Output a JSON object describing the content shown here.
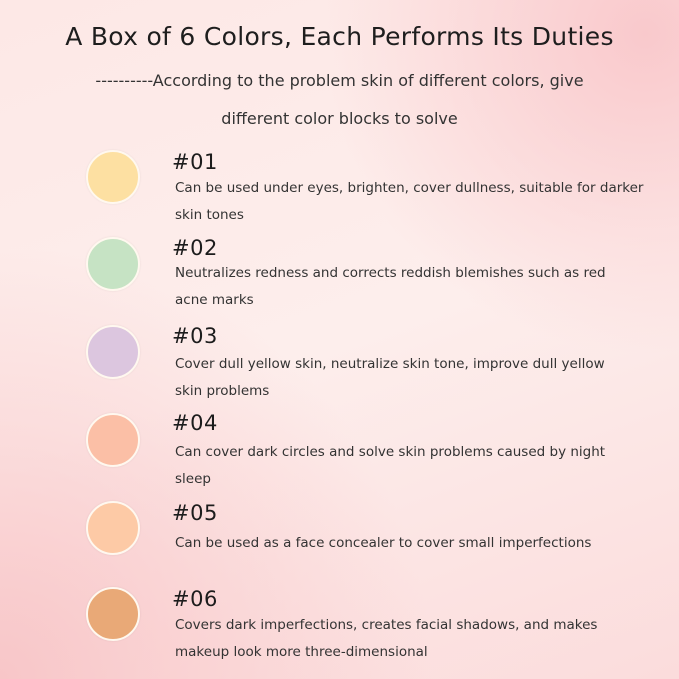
{
  "title": "A Box of 6 Colors, Each Performs Its Duties",
  "subtitle_line1": "----------According to the problem skin of different colors, give",
  "subtitle_line2": "different color blocks to solve",
  "items": [
    {
      "code": "#01",
      "color": "#fde0a2",
      "desc": "Can be used under eyes, brighten, cover dullness, suitable for darker skin tones"
    },
    {
      "code": "#02",
      "color": "#c6e3c4",
      "desc": "Neutralizes redness and corrects reddish blemishes such as red acne marks"
    },
    {
      "code": "#03",
      "color": "#dcc6df",
      "desc": "Cover dull yellow skin, neutralize skin tone, improve dull yellow skin problems"
    },
    {
      "code": "#04",
      "color": "#fbbfa6",
      "desc": "Can cover dark circles and solve skin problems caused by night sleep"
    },
    {
      "code": "#05",
      "color": "#fdcaa6",
      "desc": "Can be used as a face concealer to cover small imperfections"
    },
    {
      "code": "#06",
      "color": "#e9a977",
      "desc": "Covers dark imperfections, creates facial shadows, and makes makeup look more three-dimensional"
    }
  ]
}
